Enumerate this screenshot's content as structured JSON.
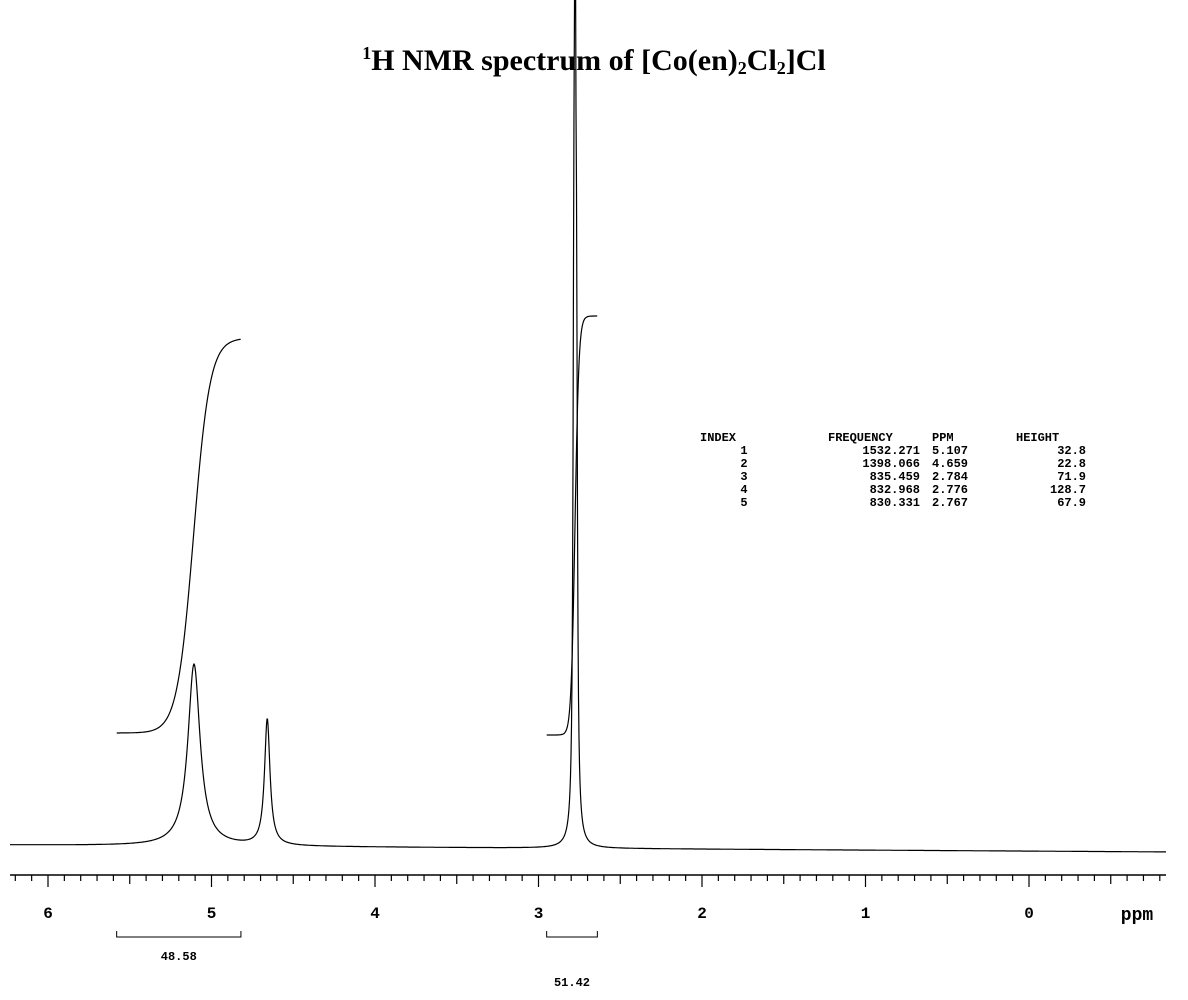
{
  "title": {
    "prefix": "1",
    "main": "H NMR  spectrum  of  [Co(en)",
    "sub1": "2",
    "mid": "Cl",
    "sub2": "2",
    "end": "]Cl"
  },
  "chart_data": {
    "type": "line",
    "xlabel": "ppm",
    "xlim": [
      6.3,
      -0.8
    ],
    "x_reversed": true,
    "major_ticks": [
      6,
      5,
      4,
      3,
      2,
      1,
      0
    ],
    "tick_labels": [
      "6",
      "5",
      "4",
      "3",
      "2",
      "1",
      "0"
    ],
    "peaks": [
      {
        "ppm": 5.107,
        "height": 32.8
      },
      {
        "ppm": 4.659,
        "height": 22.8
      },
      {
        "ppm": 2.784,
        "height": 71.9
      },
      {
        "ppm": 2.776,
        "height": 128.7
      },
      {
        "ppm": 2.767,
        "height": 67.9
      }
    ],
    "integrals": [
      {
        "from": 5.58,
        "to": 4.82,
        "value": "48.58"
      },
      {
        "from": 2.95,
        "to": 2.64,
        "value": "51.42"
      }
    ],
    "peak_table": {
      "headers": [
        "INDEX",
        "FREQUENCY",
        "PPM",
        "HEIGHT"
      ],
      "rows": [
        [
          "1",
          "1532.271",
          "5.107",
          "32.8"
        ],
        [
          "2",
          "1398.066",
          "4.659",
          "22.8"
        ],
        [
          "3",
          "835.459",
          "2.784",
          "71.9"
        ],
        [
          "4",
          "832.968",
          "2.776",
          "128.7"
        ],
        [
          "5",
          "830.331",
          "2.767",
          "67.9"
        ]
      ]
    }
  }
}
